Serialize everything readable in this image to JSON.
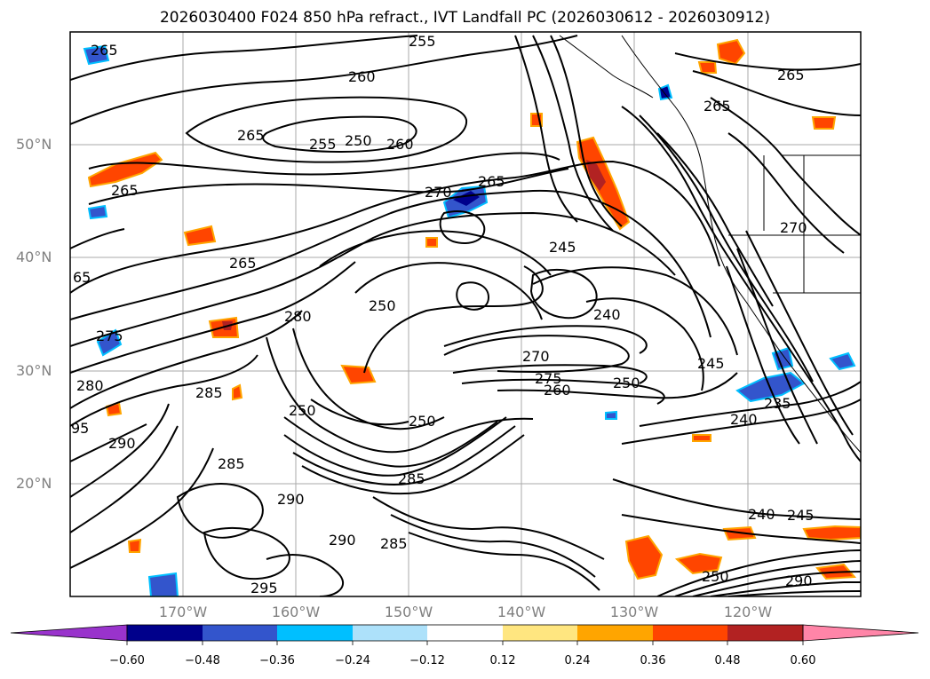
{
  "title": "2026030400 F024 850 hPa refract., IVT Landfall PC (2026030612 - 2026030912)",
  "lat_labels": [
    "50°N",
    "40°N",
    "30°N",
    "20°N"
  ],
  "lon_labels": [
    "170°W",
    "160°W",
    "150°W",
    "140°W",
    "130°W",
    "120°W"
  ],
  "map_extent": {
    "lon_min": -180,
    "lon_max": -110,
    "lat_min": 10,
    "lat_max": 60
  },
  "contour_labels": [
    "265",
    "255",
    "260",
    "265",
    "255",
    "250",
    "260",
    "265",
    "270",
    "265",
    "265",
    "245",
    "250",
    "240",
    "280",
    "275",
    "285",
    "250",
    "270",
    "275",
    "260",
    "250",
    "245",
    "240",
    "235",
    "250",
    "285",
    "290",
    "285",
    "290",
    "285",
    "290",
    "295",
    "240",
    "245",
    "250",
    "290",
    "265",
    "270",
    "265",
    "65",
    "95",
    "280"
  ],
  "colorbar": {
    "ticks": [
      "−0.60",
      "−0.48",
      "−0.36",
      "−0.24",
      "−0.12",
      "0.12",
      "0.24",
      "0.36",
      "0.48",
      "0.60"
    ],
    "colors": [
      "#9933CC",
      "#00008B",
      "#3355CC",
      "#00BFFF",
      "#ADE1FA",
      "#FFFFFF",
      "#FFE680",
      "#FFA500",
      "#FF4500",
      "#B22222",
      "#FF85A8",
      "#FF85A8"
    ]
  },
  "colors": {
    "frame": "#000000",
    "grid": "#aaaaaa",
    "tick_label": "#808080"
  }
}
